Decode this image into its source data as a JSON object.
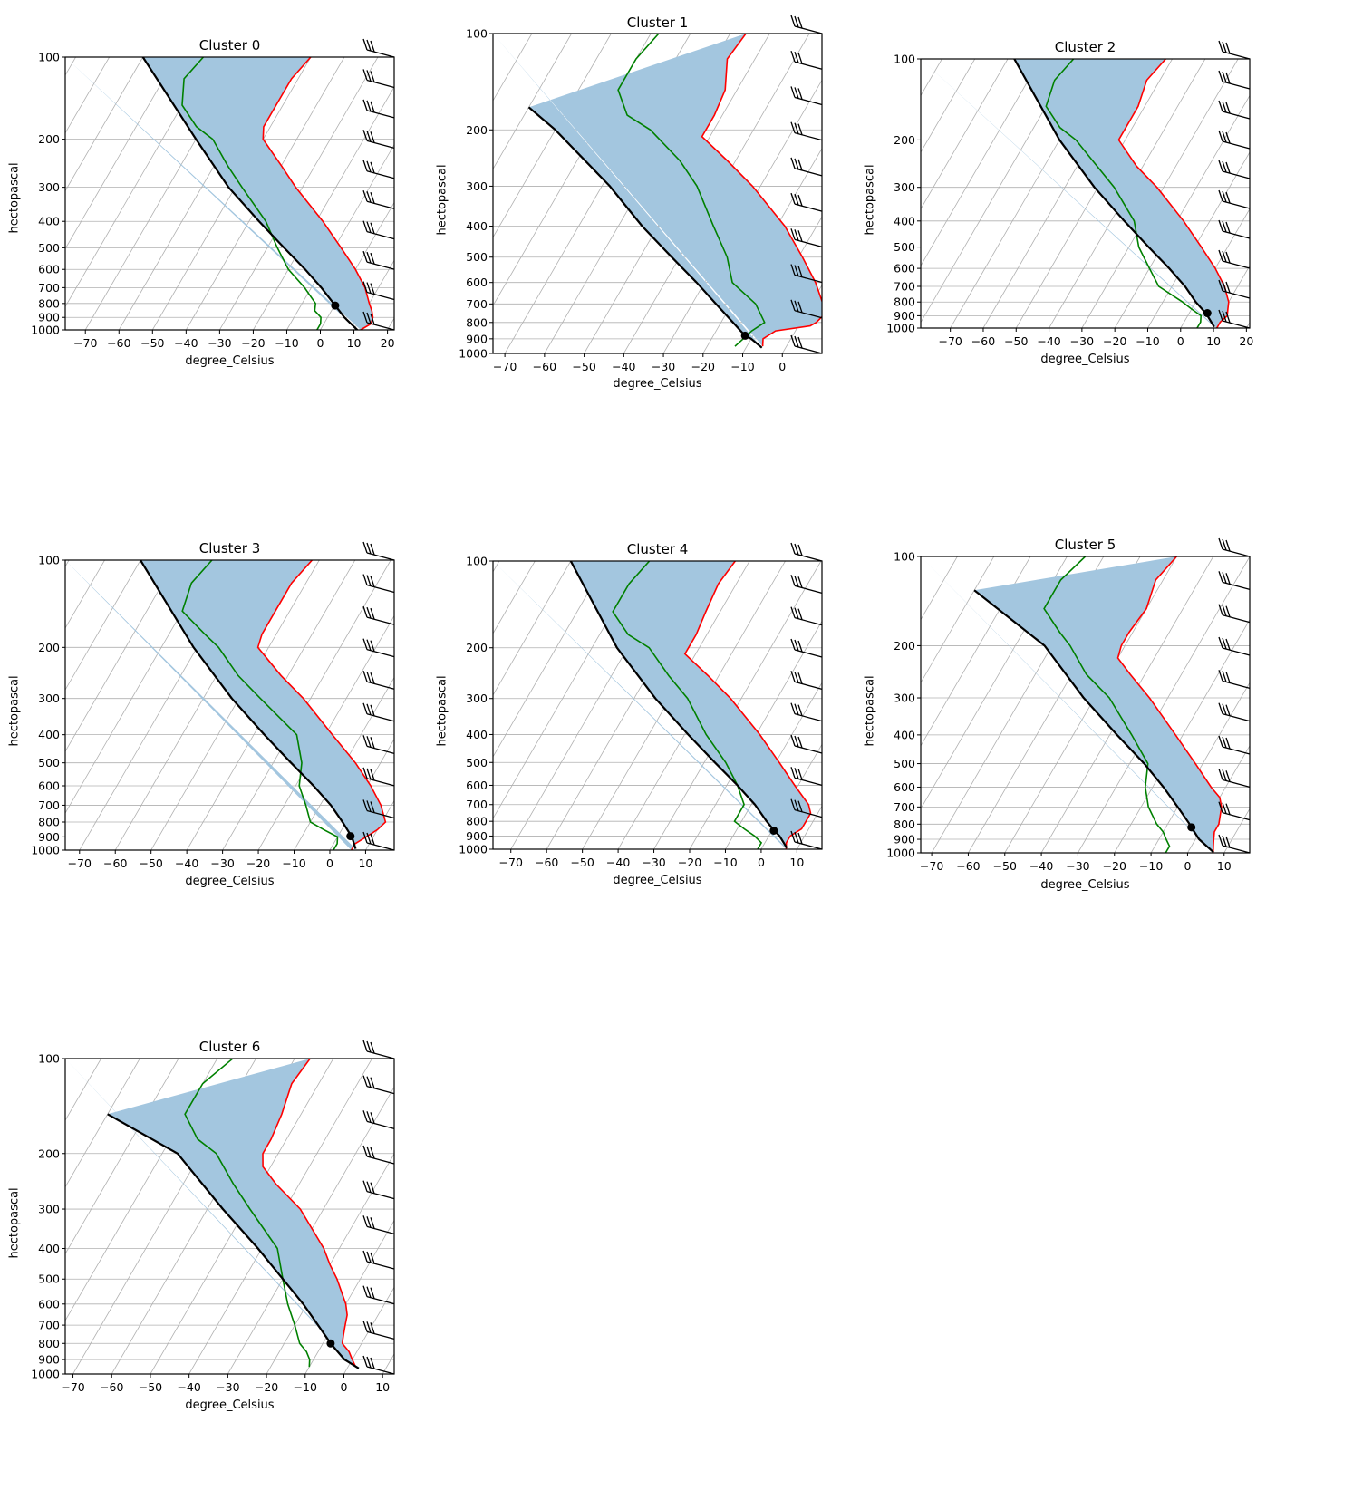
{
  "figure": {
    "type": "skew-T log-P diagrams",
    "panel_count": 7
  },
  "chart_data": [
    {
      "type": "line",
      "title": "Cluster 0",
      "xlabel": "degree_Celsius",
      "ylabel": "hectopascal",
      "x_ticks": [
        "−70",
        "−60",
        "−50",
        "−40",
        "−30",
        "−20",
        "−10",
        "0",
        "10",
        "20"
      ],
      "y_ticks": [
        "100",
        "200",
        "300",
        "400",
        "500",
        "600",
        "700",
        "800",
        "900",
        "1000"
      ],
      "xlim": [
        -76,
        22
      ],
      "ylim": [
        1000,
        100
      ],
      "grid": true,
      "series": [
        {
          "name": "temperature",
          "color": "#ff0000",
          "p": [
            1000,
            950,
            900,
            850,
            800,
            700,
            600,
            500,
            400,
            300,
            250,
            200,
            180,
            150,
            120,
            100
          ],
          "t": [
            12,
            14,
            13.5,
            12,
            10,
            6,
            0,
            -8,
            -18,
            -32,
            -40,
            -50,
            -52,
            -52,
            -52,
            -50
          ]
        },
        {
          "name": "dewpoint",
          "color": "#008000",
          "p": [
            1000,
            950,
            900,
            850,
            800,
            700,
            600,
            500,
            400,
            300,
            250,
            200,
            180,
            150,
            120,
            100
          ],
          "t": [
            -1,
            -1,
            -2,
            -5,
            -6,
            -12,
            -20,
            -27,
            -35,
            -48,
            -56,
            -65,
            -72,
            -80,
            -84,
            -82
          ]
        },
        {
          "name": "parcel_profile",
          "color": "#000000",
          "p": [
            1000,
            900,
            814,
            700,
            600,
            500,
            400,
            300,
            200,
            100
          ],
          "t": [
            11,
            5,
            0.2,
            -7,
            -15,
            -25,
            -37,
            -52,
            -70,
            -100
          ]
        }
      ],
      "lcl": {
        "p": 814,
        "t": 0.2
      },
      "shading": "CAPE/CIN region between temperature and parcel, fill #a3c6df",
      "wind_barbs": "column at right edge, 100–1000 hPa"
    },
    {
      "type": "line",
      "title": "Cluster 1",
      "xlabel": "degree_Celsius",
      "ylabel": "hectopascal",
      "x_ticks": [
        "−70",
        "−60",
        "−50",
        "−40",
        "−30",
        "−20",
        "−10",
        "0"
      ],
      "y_ticks": [
        "100",
        "200",
        "300",
        "400",
        "500",
        "600",
        "700",
        "800",
        "900",
        "1000"
      ],
      "xlim": [
        -73,
        10
      ],
      "ylim": [
        1000,
        100
      ],
      "grid": true,
      "series": [
        {
          "name": "temperature",
          "color": "#ff0000",
          "p": [
            950,
            900,
            850,
            820,
            800,
            750,
            700,
            600,
            500,
            400,
            300,
            250,
            210,
            180,
            150,
            120,
            100
          ],
          "t": [
            -6,
            -7,
            -5,
            3,
            4,
            5,
            3,
            -2,
            -9,
            -18,
            -32,
            -42,
            -52,
            -52,
            -53,
            -57,
            -56
          ]
        },
        {
          "name": "dewpoint",
          "color": "#008000",
          "p": [
            950,
            900,
            850,
            800,
            700,
            600,
            500,
            400,
            300,
            250,
            200,
            180,
            150,
            120,
            100
          ],
          "t": [
            -13,
            -12,
            -11,
            -9,
            -14,
            -23,
            -28,
            -36,
            -46,
            -54,
            -66,
            -74,
            -80,
            -80,
            -78
          ]
        },
        {
          "name": "parcel_profile",
          "color": "#000000",
          "p": [
            960,
            900,
            880,
            800,
            700,
            600,
            500,
            400,
            300,
            200,
            170
          ],
          "t": [
            -6,
            -10,
            -12,
            -17,
            -24,
            -32,
            -42,
            -54,
            -68,
            -90,
            -100
          ]
        }
      ],
      "lcl": {
        "p": 880,
        "t": -12
      },
      "shading": "fill #a3c6df",
      "wind_barbs": "column at right edge incl. pennants at 200–300 hPa"
    },
    {
      "type": "line",
      "title": "Cluster 2",
      "xlabel": "degree_Celsius",
      "ylabel": "hectopascal",
      "x_ticks": [
        "−70",
        "−60",
        "−50",
        "−40",
        "−30",
        "−20",
        "−10",
        "0",
        "10",
        "20"
      ],
      "y_ticks": [
        "100",
        "200",
        "300",
        "400",
        "500",
        "600",
        "700",
        "800",
        "900",
        "1000"
      ],
      "xlim": [
        -79,
        21
      ],
      "ylim": [
        1000,
        100
      ],
      "grid": true,
      "series": [
        {
          "name": "temperature",
          "color": "#ff0000",
          "p": [
            1000,
            950,
            900,
            850,
            800,
            700,
            600,
            500,
            400,
            300,
            250,
            200,
            180,
            150,
            120,
            100
          ],
          "t": [
            11,
            11,
            12,
            11,
            10,
            6,
            0,
            -8,
            -18,
            -32,
            -42,
            -52,
            -52,
            -52,
            -54,
            -52
          ]
        },
        {
          "name": "dewpoint",
          "color": "#008000",
          "p": [
            1000,
            950,
            900,
            850,
            800,
            700,
            600,
            500,
            400,
            300,
            250,
            200,
            180,
            150,
            120,
            100
          ],
          "t": [
            5,
            5,
            4,
            0,
            -4,
            -14,
            -20,
            -27,
            -33,
            -45,
            -54,
            -65,
            -72,
            -80,
            -82,
            -80
          ]
        },
        {
          "name": "parcel_profile",
          "color": "#000000",
          "p": [
            990,
            900,
            880,
            800,
            700,
            600,
            500,
            400,
            300,
            200,
            100
          ],
          "t": [
            10,
            6,
            5,
            0,
            -6,
            -14,
            -24,
            -36,
            -51,
            -70,
            -98
          ]
        }
      ],
      "lcl": {
        "p": 880,
        "t": 5.5
      },
      "shading": "fill #a3c6df",
      "wind_barbs": "column at right edge"
    },
    {
      "type": "line",
      "title": "Cluster 3",
      "xlabel": "degree_Celsius",
      "ylabel": "hectopascal",
      "x_ticks": [
        "−70",
        "−60",
        "−50",
        "−40",
        "−30",
        "−20",
        "−10",
        "0",
        "10"
      ],
      "y_ticks": [
        "100",
        "200",
        "300",
        "400",
        "500",
        "600",
        "700",
        "800",
        "900",
        "1000"
      ],
      "xlim": [
        -74,
        18
      ],
      "ylim": [
        1000,
        100
      ],
      "grid": true,
      "series": [
        {
          "name": "temperature",
          "color": "#ff0000",
          "p": [
            1000,
            950,
            900,
            850,
            800,
            700,
            600,
            500,
            400,
            300,
            250,
            200,
            180,
            150,
            120,
            100
          ],
          "t": [
            6,
            6,
            8,
            10,
            11,
            7,
            1,
            -7,
            -18,
            -32,
            -42,
            -53,
            -54,
            -54,
            -54,
            -52
          ]
        },
        {
          "name": "dewpoint",
          "color": "#008000",
          "p": [
            1000,
            950,
            900,
            850,
            800,
            700,
            600,
            500,
            400,
            300,
            250,
            200,
            180,
            150,
            120,
            100
          ],
          "t": [
            1,
            1,
            0,
            -5,
            -10,
            -14,
            -19,
            -22,
            -28,
            -44,
            -54,
            -64,
            -70,
            -80,
            -82,
            -80
          ]
        },
        {
          "name": "parcel_profile",
          "color": "#000000",
          "p": [
            990,
            900,
            890,
            800,
            700,
            600,
            500,
            400,
            300,
            200,
            100
          ],
          "t": [
            7,
            4,
            3.5,
            -1,
            -7,
            -15,
            -25,
            -37,
            -52,
            -71,
            -100
          ]
        }
      ],
      "lcl": {
        "p": 895,
        "t": 3.5
      },
      "shading": "fill #a3c6df",
      "wind_barbs": "column at right edge incl. pennants near 200–250 hPa"
    },
    {
      "type": "line",
      "title": "Cluster 4",
      "xlabel": "degree_Celsius",
      "ylabel": "hectopascal",
      "x_ticks": [
        "−70",
        "−60",
        "−50",
        "−40",
        "−30",
        "−20",
        "−10",
        "0",
        "10"
      ],
      "y_ticks": [
        "100",
        "200",
        "300",
        "400",
        "500",
        "600",
        "700",
        "800",
        "900",
        "1000"
      ],
      "xlim": [
        -75,
        17
      ],
      "ylim": [
        1000,
        100
      ],
      "grid": true,
      "series": [
        {
          "name": "temperature",
          "color": "#ff0000",
          "p": [
            1000,
            950,
            900,
            850,
            800,
            750,
            700,
            600,
            500,
            400,
            300,
            250,
            210,
            180,
            150,
            120,
            100
          ],
          "t": [
            7,
            6,
            6,
            8,
            8,
            8,
            6,
            -1,
            -9,
            -19,
            -33,
            -43,
            -53,
            -53,
            -54,
            -55,
            -54
          ]
        },
        {
          "name": "dewpoint",
          "color": "#008000",
          "p": [
            1000,
            950,
            900,
            850,
            800,
            700,
            600,
            500,
            400,
            300,
            250,
            200,
            180,
            150,
            120,
            100
          ],
          "t": [
            -1,
            -1,
            -4,
            -8,
            -12,
            -12,
            -17,
            -24,
            -34,
            -45,
            -54,
            -64,
            -72,
            -80,
            -80,
            -78
          ]
        },
        {
          "name": "parcel_profile",
          "color": "#000000",
          "p": [
            990,
            900,
            860,
            800,
            700,
            600,
            500,
            400,
            300,
            200,
            100
          ],
          "t": [
            7,
            3,
            0.5,
            -3,
            -9,
            -17,
            -27,
            -39,
            -54,
            -73,
            -100
          ]
        }
      ],
      "lcl": {
        "p": 862,
        "t": 0.5
      },
      "shading": "fill #a3c6df",
      "wind_barbs": "column at right edge"
    },
    {
      "type": "line",
      "title": "Cluster 5",
      "xlabel": "degree_Celsius",
      "ylabel": "hectopascal",
      "x_ticks": [
        "−70",
        "−60",
        "−50",
        "−40",
        "−30",
        "−20",
        "−10",
        "0",
        "10"
      ],
      "y_ticks": [
        "100",
        "200",
        "300",
        "400",
        "500",
        "600",
        "700",
        "800",
        "900",
        "1000"
      ],
      "xlim": [
        -73,
        17
      ],
      "ylim": [
        1000,
        100
      ],
      "grid": true,
      "series": [
        {
          "name": "temperature",
          "color": "#ff0000",
          "p": [
            1000,
            950,
            900,
            850,
            800,
            700,
            650,
            600,
            500,
            400,
            300,
            250,
            220,
            200,
            180,
            150,
            120,
            100
          ],
          "t": [
            7,
            6,
            5,
            4,
            4,
            2,
            0,
            -4,
            -12,
            -22,
            -35,
            -44,
            -50,
            -51,
            -51,
            -50,
            -52,
            -50
          ]
        },
        {
          "name": "dewpoint",
          "color": "#008000",
          "p": [
            1000,
            950,
            900,
            850,
            800,
            700,
            600,
            500,
            400,
            300,
            250,
            200,
            180,
            150,
            120,
            100
          ],
          "t": [
            -6,
            -6,
            -8,
            -10,
            -13,
            -18,
            -22,
            -25,
            -34,
            -46,
            -56,
            -65,
            -70,
            -78,
            -78,
            -75
          ]
        },
        {
          "name": "parcel_profile",
          "color": "#000000",
          "p": [
            995,
            900,
            820,
            800,
            700,
            600,
            500,
            400,
            300,
            200,
            130
          ],
          "t": [
            7,
            1,
            -3,
            -4,
            -10,
            -17,
            -26,
            -38,
            -53,
            -72,
            -100
          ]
        }
      ],
      "lcl": {
        "p": 820,
        "t": -3
      },
      "shading": "fill #a3c6df",
      "wind_barbs": "column at right edge"
    },
    {
      "type": "line",
      "title": "Cluster 6",
      "xlabel": "degree_Celsius",
      "ylabel": "hectopascal",
      "x_ticks": [
        "−70",
        "−60",
        "−50",
        "−40",
        "−30",
        "−20",
        "−10",
        "0",
        "10"
      ],
      "y_ticks": [
        "100",
        "200",
        "300",
        "400",
        "500",
        "600",
        "700",
        "800",
        "900",
        "1000"
      ],
      "xlim": [
        -72,
        13
      ],
      "ylim": [
        1000,
        100
      ],
      "grid": true,
      "series": [
        {
          "name": "temperature",
          "color": "#ff0000",
          "p": [
            950,
            900,
            850,
            800,
            750,
            700,
            650,
            600,
            500,
            450,
            400,
            300,
            250,
            220,
            200,
            180,
            150,
            120,
            100
          ],
          "t": [
            2,
            0,
            -2,
            -5,
            -6,
            -7,
            -8,
            -10,
            -16,
            -20,
            -24,
            -36,
            -46,
            -52,
            -54,
            -54,
            -55,
            -57,
            -56
          ]
        },
        {
          "name": "dewpoint",
          "color": "#008000",
          "p": [
            950,
            900,
            850,
            800,
            700,
            600,
            500,
            400,
            300,
            250,
            200,
            180,
            150,
            120,
            100
          ],
          "t": [
            -10,
            -11,
            -13,
            -16,
            -20,
            -25,
            -30,
            -36,
            -49,
            -57,
            -66,
            -73,
            -80,
            -80,
            -76
          ]
        },
        {
          "name": "parcel_profile",
          "color": "#000000",
          "p": [
            960,
            900,
            800,
            700,
            600,
            500,
            400,
            300,
            200,
            150
          ],
          "t": [
            3,
            -2,
            -8,
            -14,
            -21,
            -30,
            -41,
            -56,
            -76,
            -100
          ]
        }
      ],
      "lcl": {
        "p": 800,
        "t": -8
      },
      "shading": "fill #a3c6df",
      "wind_barbs": "column at right edge incl. pennants near 200–250 hPa"
    }
  ],
  "colors": {
    "temperature": "#ff0000",
    "dewpoint": "#008000",
    "parcel": "#000000",
    "fill": "#a3c6df",
    "grid": "#b0b0b0",
    "skew_lines": "#b0b0b0"
  },
  "labels": {
    "xlabel": "degree_Celsius",
    "ylabel": "hectopascal"
  }
}
